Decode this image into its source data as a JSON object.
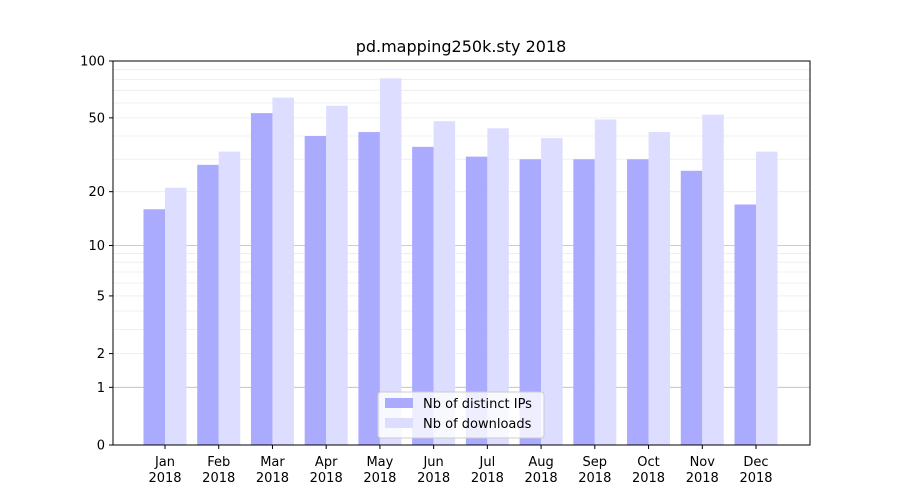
{
  "chart_data": {
    "type": "bar",
    "title": "pd.mapping250k.sty 2018",
    "xlabel": "",
    "ylabel": "",
    "yscale": "log(1+y)",
    "ylim": [
      0,
      100
    ],
    "yticks": [
      0,
      1,
      2,
      5,
      10,
      20,
      50,
      100
    ],
    "categories": [
      "Jan\n2018",
      "Feb\n2018",
      "Mar\n2018",
      "Apr\n2018",
      "May\n2018",
      "Jun\n2018",
      "Jul\n2018",
      "Aug\n2018",
      "Sep\n2018",
      "Oct\n2018",
      "Nov\n2018",
      "Dec\n2018"
    ],
    "series": [
      {
        "name": "Nb of distinct IPs",
        "color": "#aaaaff",
        "values": [
          16,
          28,
          53,
          40,
          42,
          35,
          31,
          30,
          30,
          30,
          26,
          17
        ]
      },
      {
        "name": "Nb of downloads",
        "color": "#ddddff",
        "values": [
          21,
          33,
          64,
          58,
          81,
          48,
          44,
          39,
          49,
          42,
          52,
          33
        ]
      }
    ],
    "grid": "minor horizontal, reference lines at 1 and 10",
    "legend": "lower-center"
  }
}
